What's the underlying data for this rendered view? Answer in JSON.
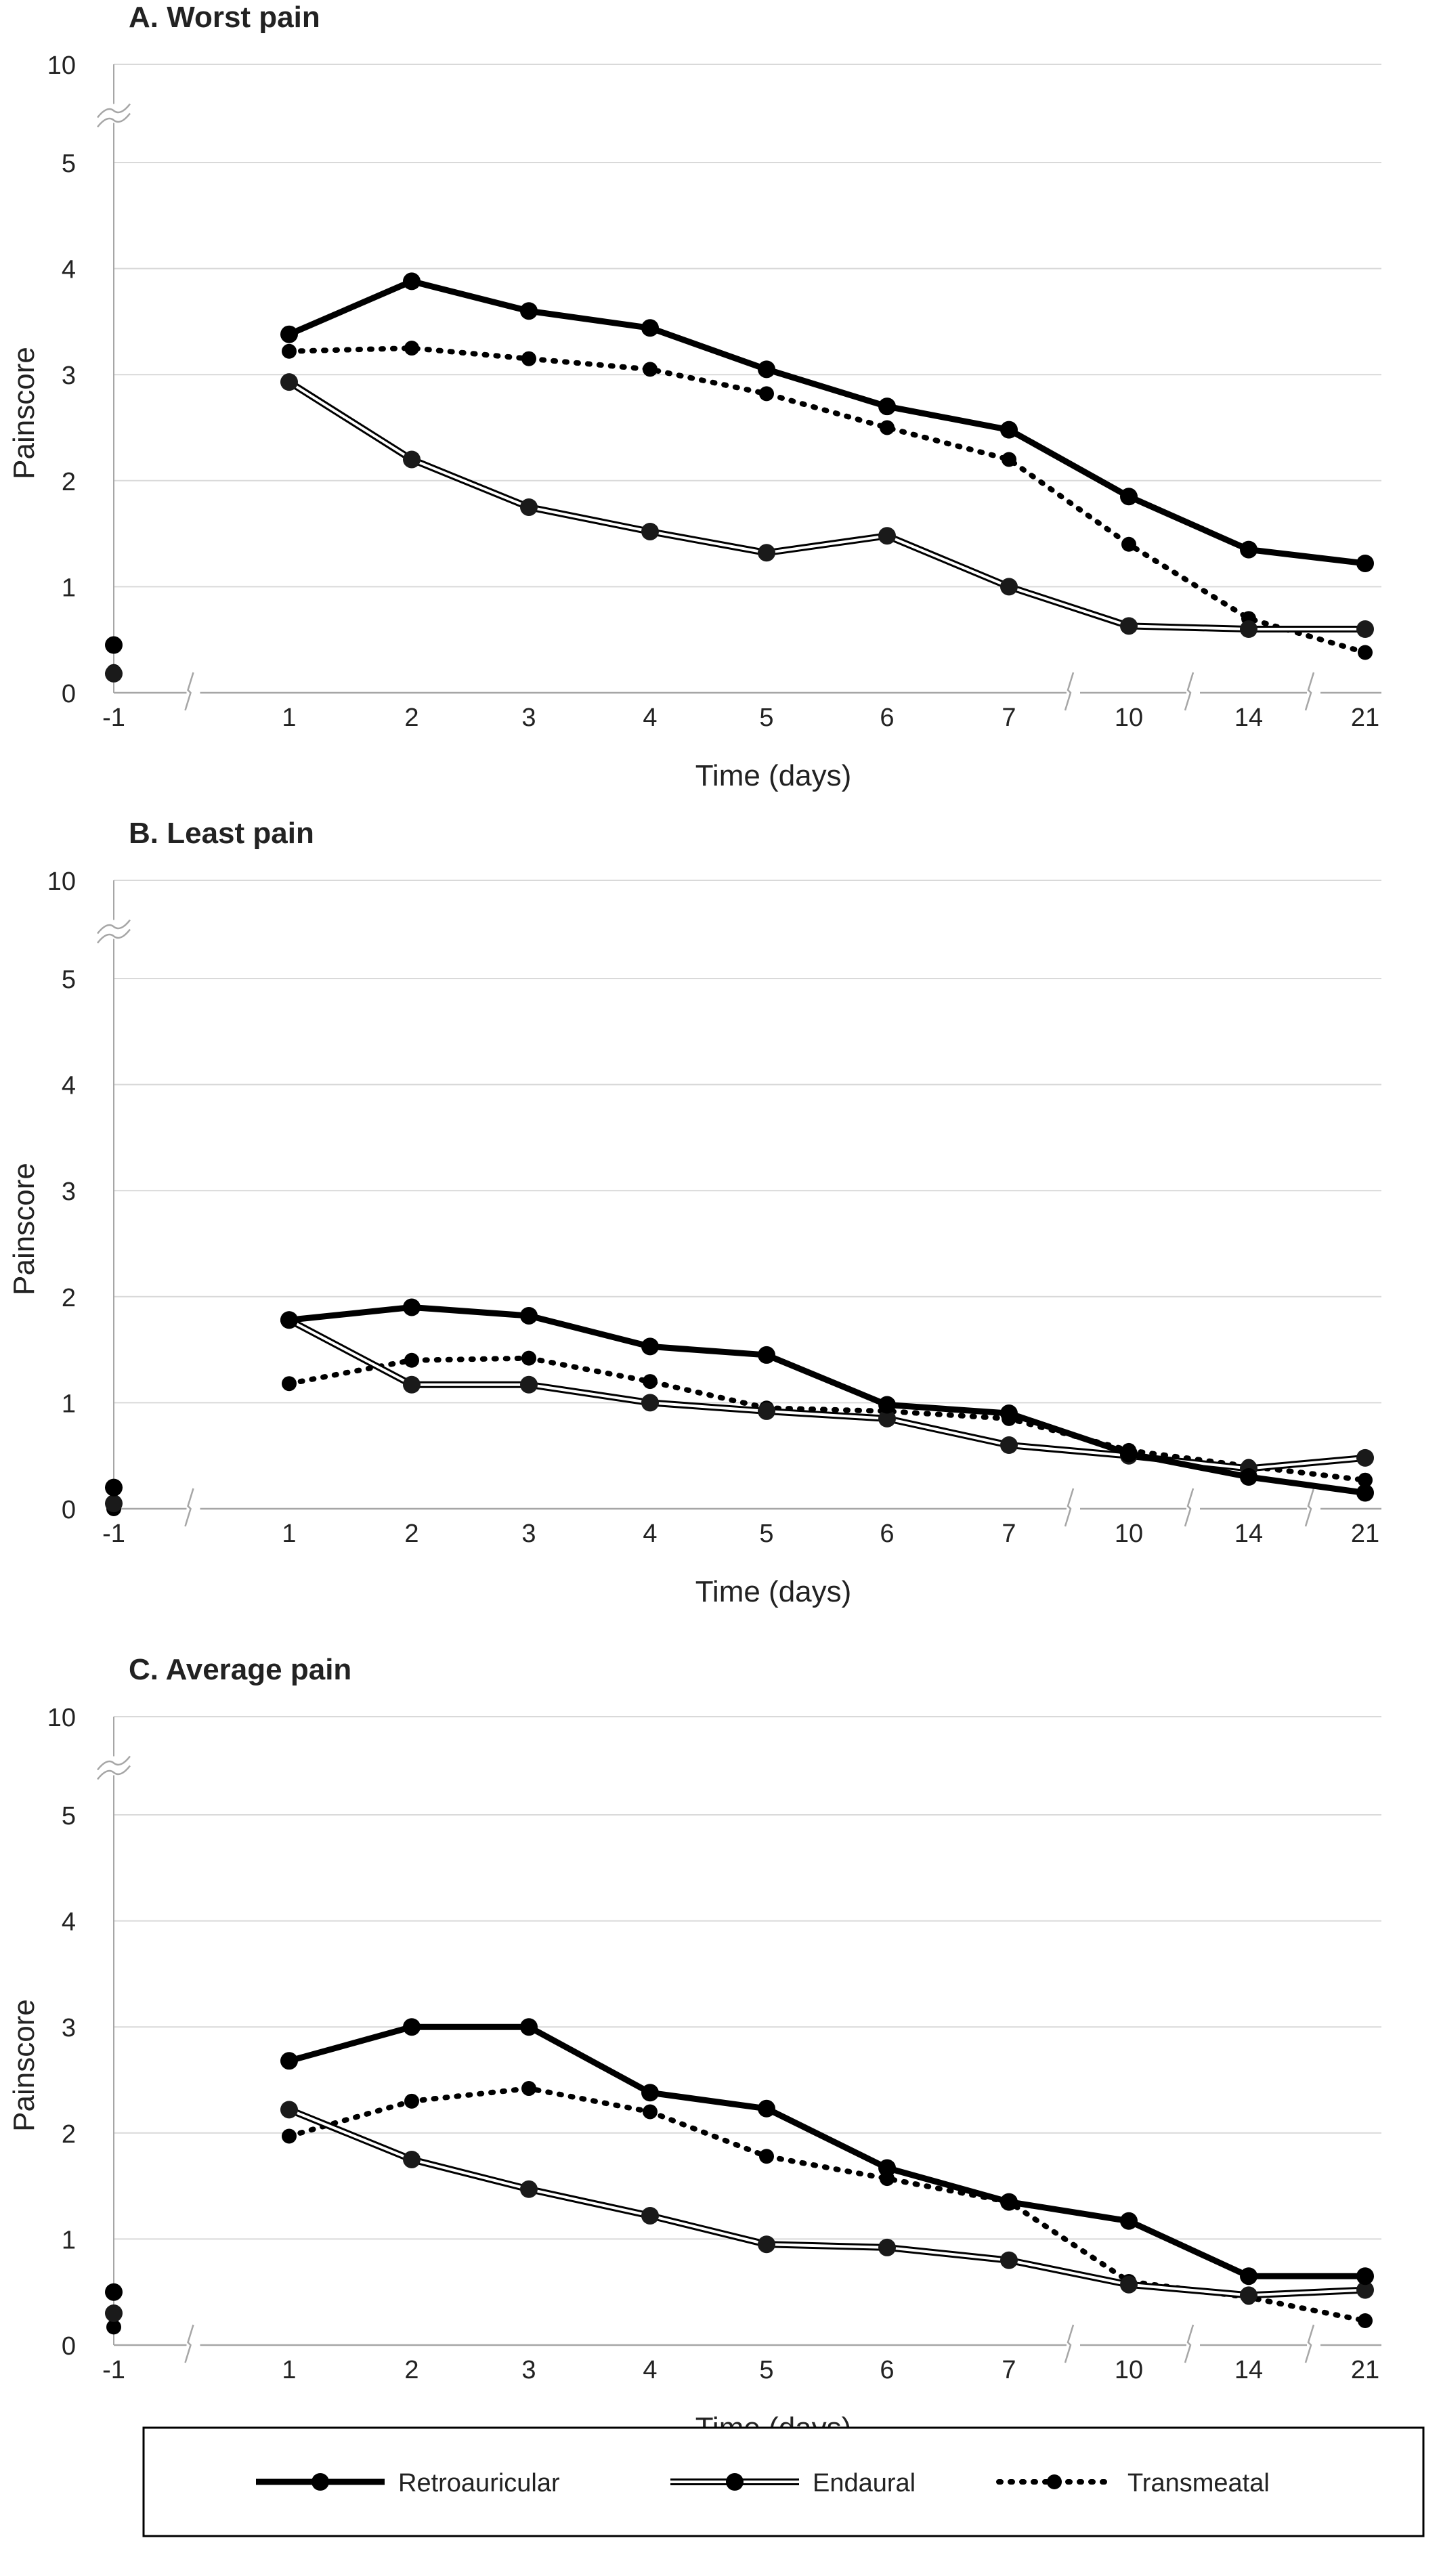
{
  "chart_data": [
    {
      "type": "line",
      "title": "A. Worst pain",
      "xlabel": "Time (days)",
      "ylabel": "Painscore",
      "categories": [
        "-1",
        "1",
        "2",
        "3",
        "4",
        "5",
        "6",
        "7",
        "10",
        "14",
        "21"
      ],
      "y_ticks": [
        "0",
        "1",
        "2",
        "3",
        "4",
        "5",
        "10"
      ],
      "ylim": [
        0,
        5
      ],
      "y_axis_break": "between 5 and 10",
      "x_axis_breaks": [
        "-1|1",
        "7|10",
        "10|14",
        "14|21"
      ],
      "series": [
        {
          "name": "Retroauricular",
          "values": [
            0.45,
            3.38,
            3.88,
            3.6,
            3.44,
            3.05,
            2.7,
            2.48,
            1.85,
            1.35,
            1.22
          ]
        },
        {
          "name": "Endaural",
          "values": [
            0.18,
            2.93,
            2.2,
            1.75,
            1.52,
            1.32,
            1.48,
            1.0,
            0.63,
            0.6,
            0.6
          ]
        },
        {
          "name": "Transmeatal",
          "values": [
            0.2,
            3.22,
            3.25,
            3.15,
            3.05,
            2.82,
            2.5,
            2.2,
            1.4,
            0.7,
            0.38
          ]
        }
      ]
    },
    {
      "type": "line",
      "title": "B. Least pain",
      "xlabel": "Time (days)",
      "ylabel": "Painscore",
      "categories": [
        "-1",
        "1",
        "2",
        "3",
        "4",
        "5",
        "6",
        "7",
        "10",
        "14",
        "21"
      ],
      "y_ticks": [
        "0",
        "1",
        "2",
        "3",
        "4",
        "5",
        "10"
      ],
      "ylim": [
        0,
        5
      ],
      "y_axis_break": "between 5 and 10",
      "x_axis_breaks": [
        "-1|1",
        "7|10",
        "10|14",
        "14|21"
      ],
      "series": [
        {
          "name": "Retroauricular",
          "values": [
            0.2,
            1.78,
            1.9,
            1.82,
            1.53,
            1.45,
            0.98,
            0.9,
            0.52,
            0.3,
            0.15
          ]
        },
        {
          "name": "Endaural",
          "values": [
            0.05,
            1.78,
            1.17,
            1.17,
            1.0,
            0.92,
            0.85,
            0.6,
            0.5,
            0.38,
            0.48
          ]
        },
        {
          "name": "Transmeatal",
          "values": [
            0.0,
            1.18,
            1.4,
            1.42,
            1.2,
            0.95,
            0.92,
            0.85,
            0.55,
            0.4,
            0.27
          ]
        }
      ]
    },
    {
      "type": "line",
      "title": "C. Average pain",
      "xlabel": "Time (days)",
      "ylabel": "Painscore",
      "categories": [
        "-1",
        "1",
        "2",
        "3",
        "4",
        "5",
        "6",
        "7",
        "10",
        "14",
        "21"
      ],
      "y_ticks": [
        "0",
        "1",
        "2",
        "3",
        "4",
        "5",
        "10"
      ],
      "ylim": [
        0,
        5
      ],
      "y_axis_break": "between 5 and 10",
      "x_axis_breaks": [
        "-1|1",
        "7|10",
        "10|14",
        "14|21"
      ],
      "series": [
        {
          "name": "Retroauricular",
          "values": [
            0.5,
            2.68,
            3.0,
            3.0,
            2.38,
            2.23,
            1.67,
            1.35,
            1.17,
            0.65,
            0.65
          ]
        },
        {
          "name": "Endaural",
          "values": [
            0.3,
            2.22,
            1.75,
            1.47,
            1.22,
            0.95,
            0.92,
            0.8,
            0.57,
            0.47,
            0.52
          ]
        },
        {
          "name": "Transmeatal",
          "values": [
            0.17,
            1.97,
            2.3,
            2.42,
            2.2,
            1.78,
            1.57,
            1.35,
            0.6,
            0.45,
            0.23
          ]
        }
      ]
    }
  ],
  "legend": {
    "placement": "bottom",
    "items": [
      {
        "label": "Retroauricular",
        "style": "solid-thick"
      },
      {
        "label": "Endaural",
        "style": "double-outline"
      },
      {
        "label": "Transmeatal",
        "style": "dotted"
      }
    ]
  },
  "colors": {
    "series": "#000000",
    "endaural_fill": "#ffffff",
    "grid": "#d9d9d9",
    "axis": "#a6a6a6",
    "text": "#222222"
  }
}
